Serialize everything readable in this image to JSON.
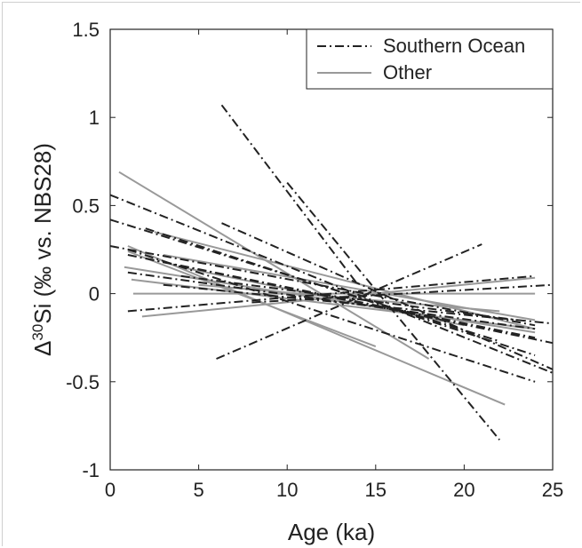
{
  "chart_data": {
    "type": "line",
    "title": "",
    "xlabel": "Age (ka)",
    "ylabel_prefix": "Δ",
    "ylabel_sup": "30",
    "ylabel_rest": "Si (‰ vs. NBS28)",
    "xlim": [
      0,
      25
    ],
    "ylim": [
      -1,
      1.5
    ],
    "xticks": [
      0,
      5,
      10,
      15,
      20,
      25
    ],
    "yticks": [
      -1,
      -0.5,
      0,
      0.5,
      1,
      1.5
    ],
    "grid": false,
    "legend_position": "top-right",
    "legend": [
      {
        "name": "Southern Ocean",
        "style": "dash-dot",
        "color": "#222222"
      },
      {
        "name": "Other",
        "style": "solid",
        "color": "#999999"
      }
    ],
    "series": [
      {
        "group": "Southern Ocean",
        "x": [
          0,
          25
        ],
        "y": [
          0.56,
          -0.45
        ]
      },
      {
        "group": "Southern Ocean",
        "x": [
          0,
          22
        ],
        "y": [
          0.42,
          -0.27
        ]
      },
      {
        "group": "Southern Ocean",
        "x": [
          0,
          24
        ],
        "y": [
          0.27,
          -0.18
        ]
      },
      {
        "group": "Southern Ocean",
        "x": [
          1,
          25
        ],
        "y": [
          0.22,
          -0.28
        ]
      },
      {
        "group": "Southern Ocean",
        "x": [
          1,
          24
        ],
        "y": [
          -0.1,
          0.1
        ]
      },
      {
        "group": "Southern Ocean",
        "x": [
          6.3,
          14
        ],
        "y": [
          1.07,
          0.05
        ]
      },
      {
        "group": "Southern Ocean",
        "x": [
          10,
          22
        ],
        "y": [
          0.63,
          -0.83
        ]
      },
      {
        "group": "Southern Ocean",
        "x": [
          6,
          21
        ],
        "y": [
          -0.37,
          0.28
        ]
      },
      {
        "group": "Southern Ocean",
        "x": [
          6.3,
          25
        ],
        "y": [
          0.4,
          -0.43
        ]
      },
      {
        "group": "Southern Ocean",
        "x": [
          2,
          24
        ],
        "y": [
          0.2,
          -0.25
        ]
      },
      {
        "group": "Southern Ocean",
        "x": [
          3,
          25
        ],
        "y": [
          0.05,
          -0.17
        ]
      },
      {
        "group": "Southern Ocean",
        "x": [
          1,
          24
        ],
        "y": [
          0.25,
          -0.5
        ]
      },
      {
        "group": "Southern Ocean",
        "x": [
          8,
          25
        ],
        "y": [
          -0.05,
          0.05
        ]
      },
      {
        "group": "Southern Ocean",
        "x": [
          4,
          23
        ],
        "y": [
          0.1,
          -0.15
        ]
      },
      {
        "group": "Southern Ocean",
        "x": [
          1,
          24
        ],
        "y": [
          0.12,
          -0.2
        ]
      },
      {
        "group": "Southern Ocean",
        "x": [
          2,
          24
        ],
        "y": [
          0.37,
          -0.35
        ]
      },
      {
        "group": "Other",
        "x": [
          0.5,
          18
        ],
        "y": [
          0.69,
          -0.37
        ]
      },
      {
        "group": "Other",
        "x": [
          1,
          22.3
        ],
        "y": [
          0.27,
          -0.63
        ]
      },
      {
        "group": "Other",
        "x": [
          2.5,
          24
        ],
        "y": [
          0.35,
          -0.2
        ]
      },
      {
        "group": "Other",
        "x": [
          0.8,
          24
        ],
        "y": [
          0.15,
          -0.22
        ]
      },
      {
        "group": "Other",
        "x": [
          1.2,
          24
        ],
        "y": [
          0.08,
          -0.2
        ]
      },
      {
        "group": "Other",
        "x": [
          1.3,
          24
        ],
        "y": [
          0.0,
          0.0
        ]
      },
      {
        "group": "Other",
        "x": [
          1.8,
          24
        ],
        "y": [
          -0.13,
          0.09
        ]
      },
      {
        "group": "Other",
        "x": [
          3,
          24
        ],
        "y": [
          0.22,
          -0.15
        ]
      },
      {
        "group": "Other",
        "x": [
          4,
          20
        ],
        "y": [
          0.15,
          -0.18
        ]
      },
      {
        "group": "Other",
        "x": [
          5,
          22
        ],
        "y": [
          0.05,
          -0.1
        ]
      },
      {
        "group": "Other",
        "x": [
          1,
          15
        ],
        "y": [
          0.24,
          -0.3
        ]
      }
    ]
  }
}
